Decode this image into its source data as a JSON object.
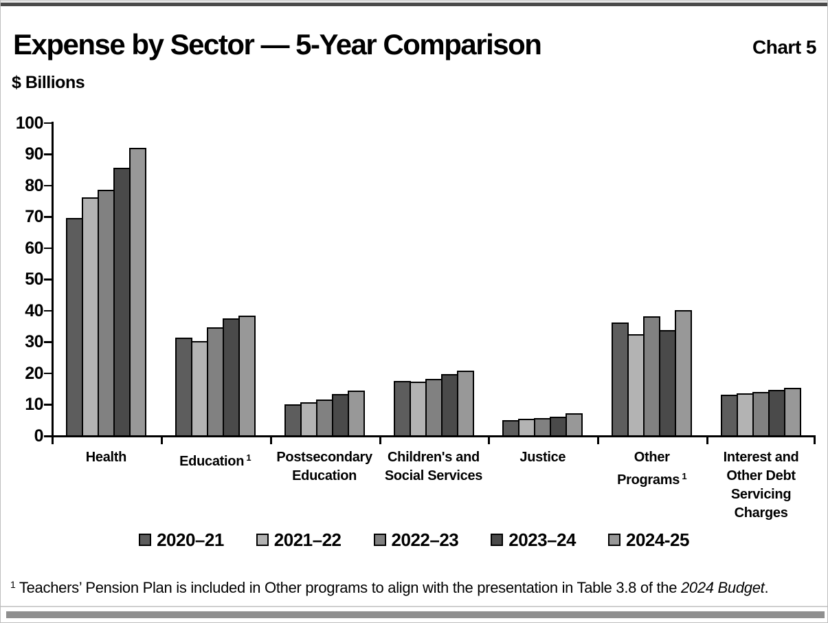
{
  "header": {
    "title": "Expense by Sector — 5-Year Comparison",
    "chart_label": "Chart 5",
    "units": "$ Billions"
  },
  "chart_data": {
    "type": "bar",
    "title": "Expense by Sector — 5-Year Comparison",
    "ylabel": "$ Billions",
    "xlabel": "",
    "ylim": [
      0,
      100
    ],
    "ytick_step": 10,
    "grid": false,
    "legend_position": "bottom",
    "categories": [
      "Health",
      "Education 1",
      "Postsecondary Education",
      "Children's and Social Services",
      "Justice",
      "Other Programs 1",
      "Interest and Other Debt Servicing Charges"
    ],
    "category_lines": [
      [
        "Health"
      ],
      [
        "Education"
      ],
      [
        "Postsecondary",
        "Education"
      ],
      [
        "Children's and",
        "Social Services"
      ],
      [
        "Justice"
      ],
      [
        "Other",
        "Programs"
      ],
      [
        "Interest and",
        "Other Debt",
        "Servicing",
        "Charges"
      ]
    ],
    "category_markers": [
      "",
      "1",
      "",
      "",
      "",
      "1",
      ""
    ],
    "series": [
      {
        "name": "2020–21",
        "color": "#5d5d5d",
        "values": [
          69.5,
          31.3,
          9.8,
          17.4,
          4.8,
          36.1,
          13.0
        ]
      },
      {
        "name": "2021–22",
        "color": "#b3b3b3",
        "values": [
          76.0,
          30.0,
          10.5,
          17.2,
          5.2,
          32.3,
          13.3
        ]
      },
      {
        "name": "2022–23",
        "color": "#818181",
        "values": [
          78.5,
          34.5,
          11.5,
          18.0,
          5.5,
          38.0,
          13.8
        ]
      },
      {
        "name": "2023–24",
        "color": "#4a4a4a",
        "values": [
          85.5,
          37.3,
          13.2,
          19.5,
          6.0,
          33.7,
          14.6
        ]
      },
      {
        "name": "2024-25",
        "color": "#989898",
        "values": [
          91.8,
          38.3,
          14.2,
          20.6,
          7.1,
          40.0,
          15.2
        ]
      }
    ]
  },
  "footnote": {
    "marker": "1",
    "text": "Teachers’ Pension Plan is included in Other programs to align with the presentation in Table 3.8 of the ",
    "italic": "2024 Budget",
    "suffix": "."
  }
}
